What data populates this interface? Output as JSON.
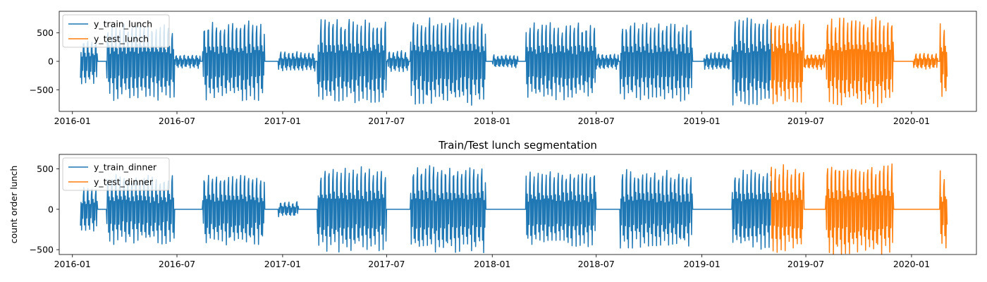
{
  "chart_data": [
    {
      "type": "line",
      "title": "",
      "xlabel": "",
      "ylabel": "",
      "xlim": [
        "2015-12-09",
        "2020-04-23"
      ],
      "ylim": [
        -880,
        880
      ],
      "x_ticks": [
        "2016-01",
        "2016-07",
        "2017-01",
        "2017-07",
        "2018-01",
        "2018-07",
        "2019-01",
        "2019-07",
        "2020-01"
      ],
      "y_ticks": [
        -500,
        0,
        500
      ],
      "y_tick_labels": [
        "−500",
        "0",
        "500"
      ],
      "legend_position": "upper-left",
      "series": [
        {
          "name": "y_train_lunch",
          "color": "#1f77b4",
          "date_range": [
            "2016-01-15",
            "2019-05-01"
          ],
          "segments": [
            {
              "start": "2016-01-15",
              "end": "2016-02-13",
              "amp": 430
            },
            {
              "start": "2016-03-01",
              "end": "2016-06-26",
              "amp": 700
            },
            {
              "start": "2016-06-27",
              "end": "2016-08-10",
              "amp": 130
            },
            {
              "start": "2016-08-15",
              "end": "2016-11-30",
              "amp": 730
            },
            {
              "start": "2016-12-25",
              "end": "2017-02-26",
              "amp": 180
            },
            {
              "start": "2017-03-03",
              "end": "2017-06-30",
              "amp": 790
            },
            {
              "start": "2017-07-03",
              "end": "2017-08-08",
              "amp": 200
            },
            {
              "start": "2017-08-12",
              "end": "2017-12-20",
              "amp": 800
            },
            {
              "start": "2018-01-02",
              "end": "2018-02-14",
              "amp": 120
            },
            {
              "start": "2018-03-01",
              "end": "2018-06-30",
              "amp": 720
            },
            {
              "start": "2018-07-01",
              "end": "2018-08-08",
              "amp": 150
            },
            {
              "start": "2018-08-12",
              "end": "2018-12-15",
              "amp": 720
            },
            {
              "start": "2019-01-05",
              "end": "2019-02-18",
              "amp": 160
            },
            {
              "start": "2019-02-23",
              "end": "2019-05-01",
              "amp": 830
            }
          ]
        },
        {
          "name": "y_test_lunch",
          "color": "#ff7f0e",
          "date_range": [
            "2019-05-01",
            "2020-03-03"
          ],
          "segments": [
            {
              "start": "2019-05-01",
              "end": "2019-06-27",
              "amp": 800
            },
            {
              "start": "2019-06-28",
              "end": "2019-08-02",
              "amp": 150
            },
            {
              "start": "2019-08-05",
              "end": "2019-11-30",
              "amp": 840
            },
            {
              "start": "2020-01-05",
              "end": "2020-02-15",
              "amp": 150
            },
            {
              "start": "2020-02-20",
              "end": "2020-03-03",
              "amp": 700
            }
          ]
        }
      ]
    },
    {
      "type": "line",
      "title": "Train/Test lunch segmentation",
      "xlabel": "",
      "ylabel": "count order lunch",
      "xlim": [
        "2015-12-09",
        "2020-04-23"
      ],
      "ylim": [
        -560,
        680
      ],
      "x_ticks": [
        "2016-01",
        "2016-07",
        "2017-01",
        "2017-07",
        "2018-01",
        "2018-07",
        "2019-01",
        "2019-07",
        "2020-01"
      ],
      "y_ticks": [
        -500,
        0,
        500
      ],
      "y_tick_labels": [
        "−500",
        "0",
        "500"
      ],
      "legend_position": "upper-left",
      "series": [
        {
          "name": "y_train_dinner",
          "color": "#1f77b4",
          "date_range": [
            "2016-01-15",
            "2019-05-01"
          ],
          "segments": [
            {
              "start": "2016-01-15",
              "end": "2016-02-13",
              "amp": 300
            },
            {
              "start": "2016-03-01",
              "end": "2016-06-26",
              "amp": 450
            },
            {
              "start": "2016-08-15",
              "end": "2016-11-30",
              "amp": 480
            },
            {
              "start": "2016-12-25",
              "end": "2017-01-28",
              "amp": 100
            },
            {
              "start": "2017-03-03",
              "end": "2017-06-30",
              "amp": 550
            },
            {
              "start": "2017-08-12",
              "end": "2017-12-20",
              "amp": 560
            },
            {
              "start": "2018-03-01",
              "end": "2018-06-30",
              "amp": 500
            },
            {
              "start": "2018-08-12",
              "end": "2018-12-15",
              "amp": 510
            },
            {
              "start": "2019-02-23",
              "end": "2019-05-01",
              "amp": 520
            }
          ]
        },
        {
          "name": "y_test_dinner",
          "color": "#ff7f0e",
          "date_range": [
            "2019-05-01",
            "2020-03-03"
          ],
          "segments": [
            {
              "start": "2019-05-01",
              "end": "2019-06-27",
              "amp": 560
            },
            {
              "start": "2019-08-05",
              "end": "2019-11-30",
              "amp": 620
            },
            {
              "start": "2020-02-20",
              "end": "2020-03-03",
              "amp": 500
            }
          ]
        }
      ]
    }
  ]
}
